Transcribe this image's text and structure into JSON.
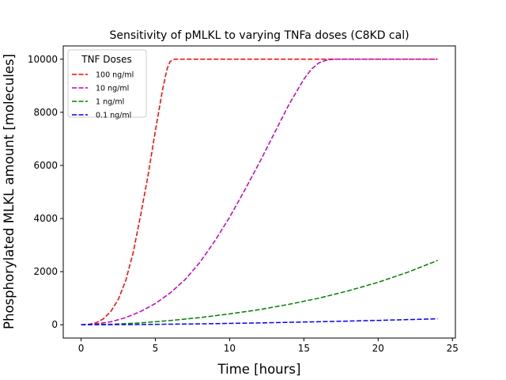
{
  "chart_data": {
    "type": "line",
    "title": "Sensitivity of pMLKL to varying TNFa doses (C8KD cal)",
    "xlabel": "Time [hours]",
    "ylabel": "Phosphorylated MLKL amount [molecules]",
    "xlim": [
      -1.2,
      25.2
    ],
    "ylim": [
      -500,
      10500
    ],
    "xticks": [
      0,
      5,
      10,
      15,
      20,
      25
    ],
    "yticks": [
      0,
      2000,
      4000,
      6000,
      8000,
      10000
    ],
    "grid": false,
    "legend": {
      "title": "TNF Doses",
      "position": "upper-left"
    },
    "series": [
      {
        "name": "100 ng/ml",
        "color": "#ff0000",
        "style": "dashed",
        "x": [
          0,
          0.5,
          1,
          1.5,
          2,
          2.5,
          3,
          3.5,
          4,
          4.5,
          5,
          5.5,
          5.8,
          6,
          6.3,
          7,
          10,
          15,
          20,
          24
        ],
        "y": [
          0,
          15,
          70,
          220,
          500,
          950,
          1650,
          2700,
          4100,
          5600,
          7300,
          8900,
          9650,
          9920,
          10000,
          10000,
          10000,
          10000,
          10000,
          10000
        ]
      },
      {
        "name": "10 ng/ml",
        "color": "#bf00bf",
        "style": "dashed",
        "x": [
          0,
          1,
          2,
          3,
          4,
          5,
          6,
          7,
          8,
          9,
          10,
          11,
          12,
          13,
          14,
          15,
          15.5,
          16,
          16.5,
          17,
          17.5,
          18,
          20,
          24
        ],
        "y": [
          0,
          30,
          110,
          270,
          500,
          800,
          1200,
          1700,
          2350,
          3150,
          4050,
          5050,
          6100,
          7200,
          8300,
          9250,
          9620,
          9860,
          9960,
          10000,
          10000,
          10000,
          10000,
          10000
        ]
      },
      {
        "name": "1 ng/ml",
        "color": "#008000",
        "style": "dashed",
        "x": [
          0,
          2,
          4,
          6,
          8,
          10,
          12,
          14,
          16,
          18,
          20,
          22,
          24
        ],
        "y": [
          0,
          20,
          70,
          160,
          270,
          410,
          570,
          770,
          1000,
          1280,
          1600,
          1980,
          2420
        ]
      },
      {
        "name": "0.1 ng/ml",
        "color": "#0000ff",
        "style": "dashed",
        "x": [
          0,
          4,
          8,
          12,
          16,
          20,
          24
        ],
        "y": [
          0,
          10,
          35,
          70,
          115,
          165,
          225
        ]
      }
    ]
  }
}
